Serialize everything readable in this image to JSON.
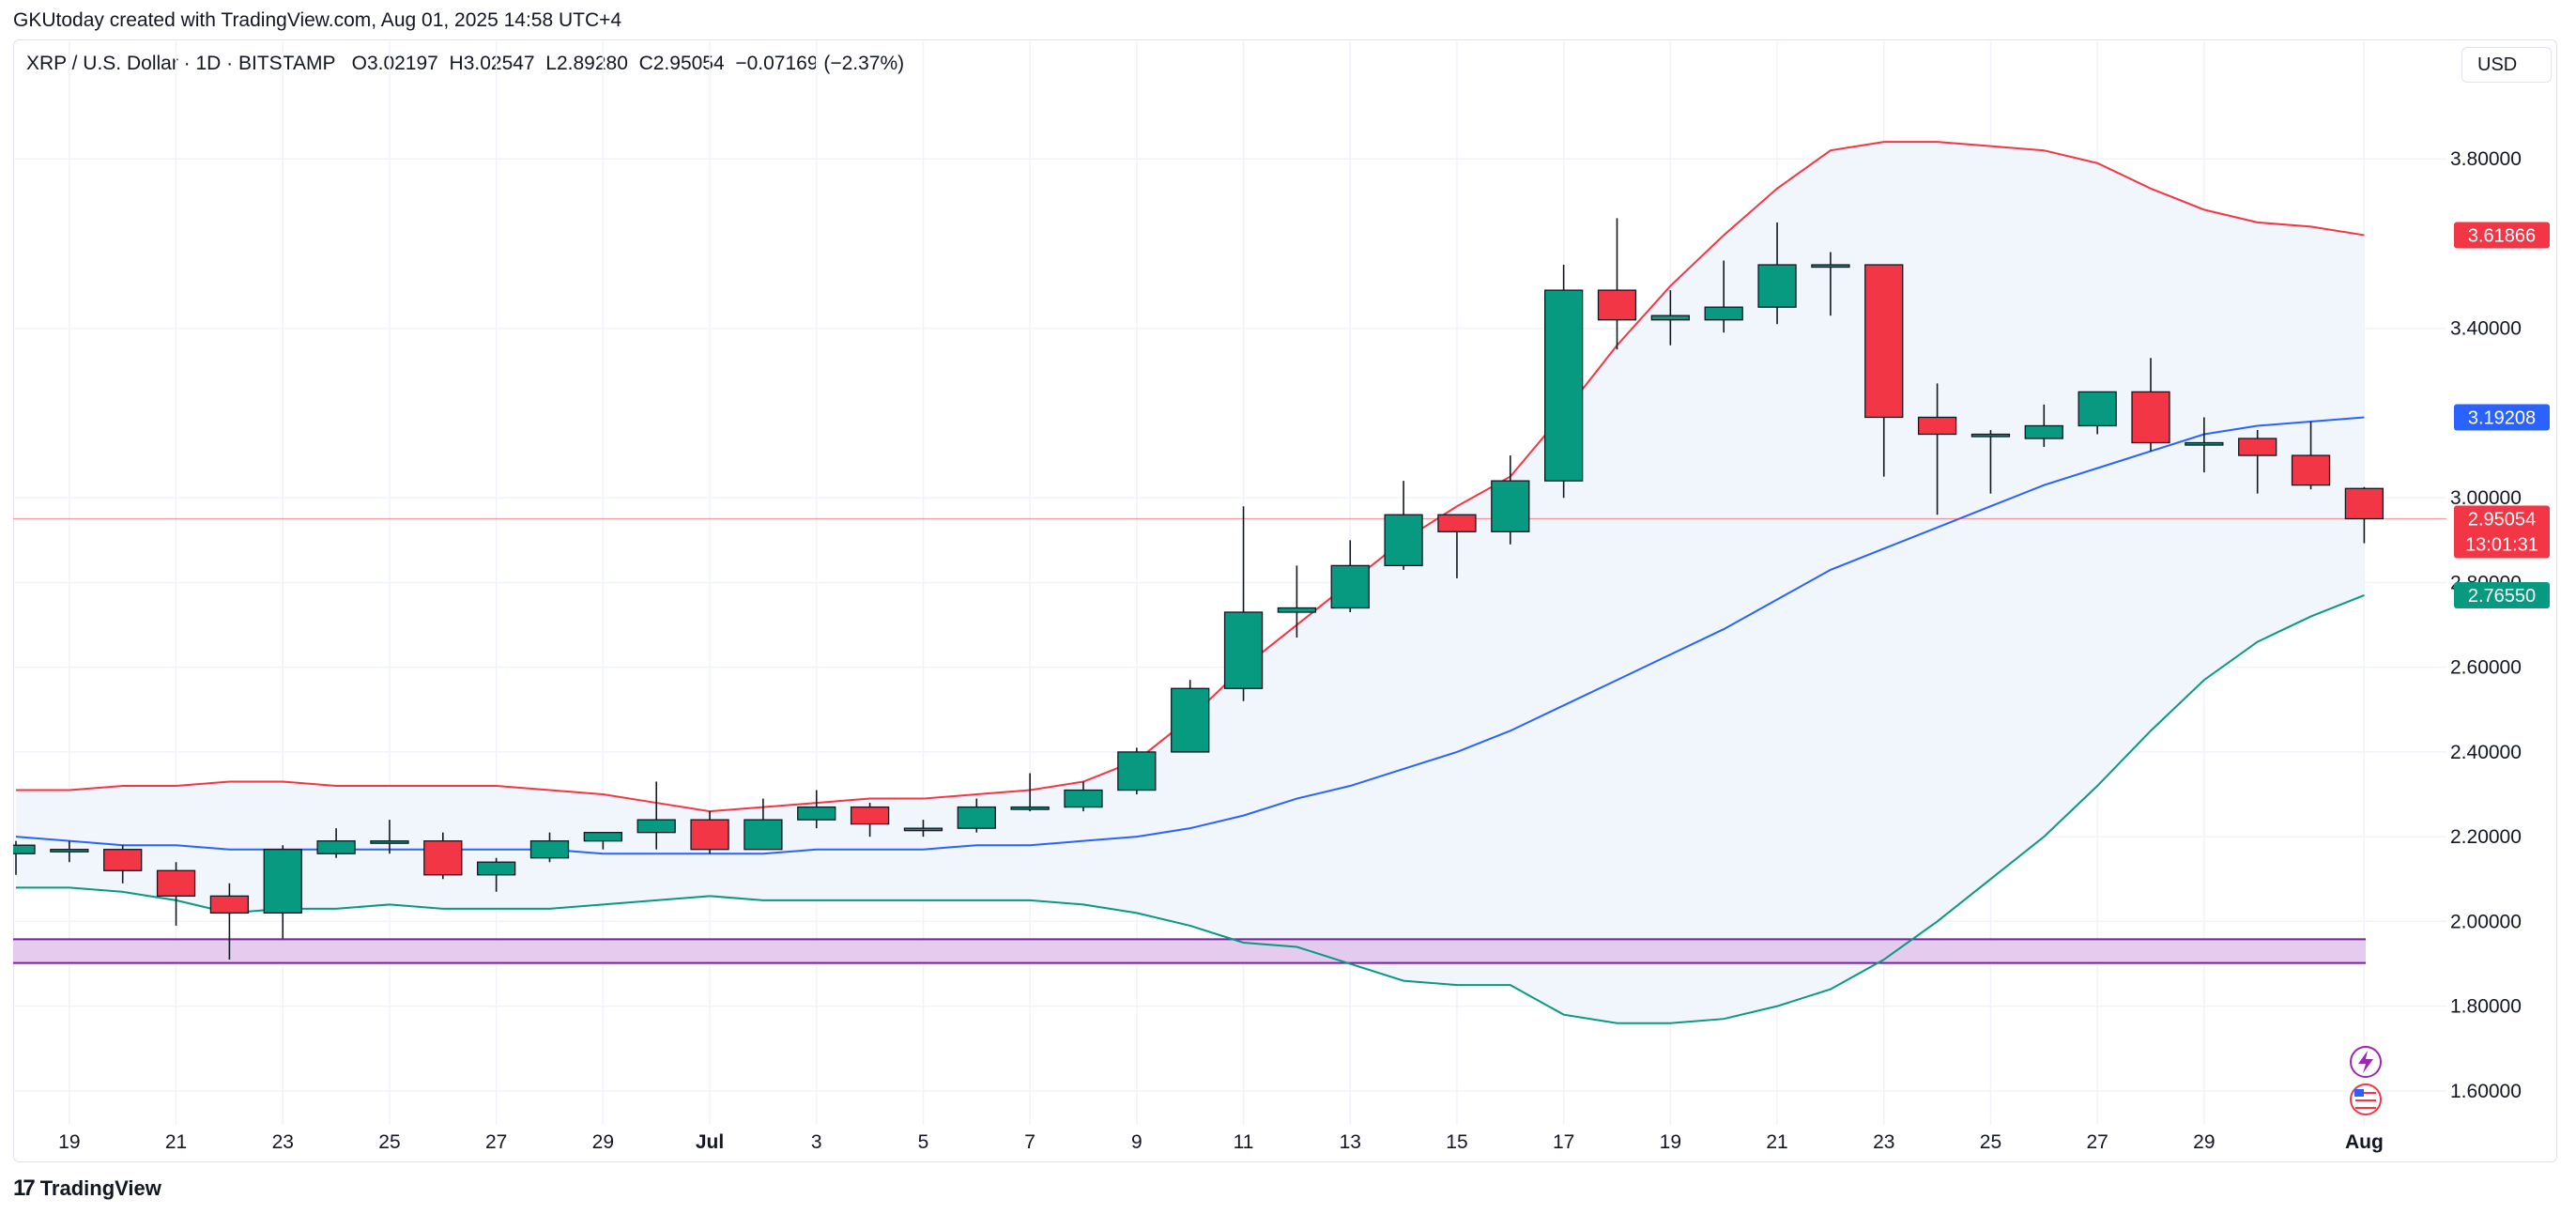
{
  "header": {
    "attribution": "GKUtoday created with TradingView.com, Aug 01, 2025 14:58 UTC+4"
  },
  "legend": {
    "symbol": "XRP / U.S. Dollar · 1D · BITSTAMP",
    "open_label": "O",
    "open": "3.02197",
    "high_label": "H",
    "high": "3.02547",
    "low_label": "L",
    "low": "2.89280",
    "close_label": "C",
    "close": "2.95054",
    "change": "−0.07169 (−2.37%)"
  },
  "currency": "USD",
  "footer": {
    "brand": "TradingView"
  },
  "colors": {
    "up": "#089981",
    "down": "#f23645",
    "upper_band": "#f23645",
    "middle_band": "#2962ff",
    "lower_band": "#089981",
    "band_fill": "#f0f6fc",
    "zone_fill": "#e1c3ec",
    "zone_border": "#7b1fa2",
    "price_line": "#f23645"
  },
  "chart_data": {
    "type": "candlestick",
    "title": "XRP / U.S. Dollar · 1D · BITSTAMP",
    "indicator": "Bollinger Bands",
    "ylim": [
      1.52,
      3.98
    ],
    "y_ticks": [
      "3.80000",
      "3.40000",
      "3.00000",
      "2.80000",
      "2.60000",
      "2.40000",
      "2.20000",
      "2.00000",
      "1.80000",
      "1.60000"
    ],
    "y_tick_values": [
      3.8,
      3.4,
      3.0,
      2.8,
      2.6,
      2.4,
      2.2,
      2.0,
      1.8,
      1.6
    ],
    "x_ticks": [
      {
        "label": "19",
        "i": 1
      },
      {
        "label": "21",
        "i": 3
      },
      {
        "label": "23",
        "i": 5
      },
      {
        "label": "25",
        "i": 7
      },
      {
        "label": "27",
        "i": 9
      },
      {
        "label": "29",
        "i": 11
      },
      {
        "label": "Jul",
        "i": 13,
        "bold": true
      },
      {
        "label": "3",
        "i": 15
      },
      {
        "label": "5",
        "i": 17
      },
      {
        "label": "7",
        "i": 19
      },
      {
        "label": "9",
        "i": 21
      },
      {
        "label": "11",
        "i": 23
      },
      {
        "label": "13",
        "i": 25
      },
      {
        "label": "15",
        "i": 27
      },
      {
        "label": "17",
        "i": 29
      },
      {
        "label": "19",
        "i": 31
      },
      {
        "label": "21",
        "i": 33
      },
      {
        "label": "23",
        "i": 35
      },
      {
        "label": "25",
        "i": 37
      },
      {
        "label": "27",
        "i": 39
      },
      {
        "label": "29",
        "i": 41
      },
      {
        "label": "Aug",
        "i": 44,
        "bold": true
      }
    ],
    "candles": [
      {
        "o": 2.16,
        "h": 2.19,
        "l": 2.11,
        "c": 2.18
      },
      {
        "o": 2.17,
        "h": 2.19,
        "l": 2.14,
        "c": 2.17
      },
      {
        "o": 2.17,
        "h": 2.18,
        "l": 2.09,
        "c": 2.12
      },
      {
        "o": 2.12,
        "h": 2.14,
        "l": 1.99,
        "c": 2.06
      },
      {
        "o": 2.06,
        "h": 2.09,
        "l": 1.91,
        "c": 2.02
      },
      {
        "o": 2.02,
        "h": 2.18,
        "l": 1.96,
        "c": 2.17
      },
      {
        "o": 2.16,
        "h": 2.22,
        "l": 2.15,
        "c": 2.19
      },
      {
        "o": 2.19,
        "h": 2.24,
        "l": 2.16,
        "c": 2.19
      },
      {
        "o": 2.19,
        "h": 2.21,
        "l": 2.1,
        "c": 2.11
      },
      {
        "o": 2.11,
        "h": 2.15,
        "l": 2.07,
        "c": 2.14
      },
      {
        "o": 2.15,
        "h": 2.21,
        "l": 2.14,
        "c": 2.19
      },
      {
        "o": 2.19,
        "h": 2.21,
        "l": 2.17,
        "c": 2.21
      },
      {
        "o": 2.21,
        "h": 2.33,
        "l": 2.17,
        "c": 2.24
      },
      {
        "o": 2.24,
        "h": 2.26,
        "l": 2.16,
        "c": 2.17
      },
      {
        "o": 2.17,
        "h": 2.29,
        "l": 2.17,
        "c": 2.24
      },
      {
        "o": 2.24,
        "h": 2.31,
        "l": 2.22,
        "c": 2.27
      },
      {
        "o": 2.27,
        "h": 2.28,
        "l": 2.2,
        "c": 2.23
      },
      {
        "o": 2.22,
        "h": 2.24,
        "l": 2.2,
        "c": 2.22
      },
      {
        "o": 2.22,
        "h": 2.29,
        "l": 2.21,
        "c": 2.27
      },
      {
        "o": 2.27,
        "h": 2.35,
        "l": 2.26,
        "c": 2.27
      },
      {
        "o": 2.27,
        "h": 2.33,
        "l": 2.26,
        "c": 2.31
      },
      {
        "o": 2.31,
        "h": 2.41,
        "l": 2.3,
        "c": 2.4
      },
      {
        "o": 2.4,
        "h": 2.57,
        "l": 2.4,
        "c": 2.55
      },
      {
        "o": 2.55,
        "h": 2.98,
        "l": 2.52,
        "c": 2.73
      },
      {
        "o": 2.73,
        "h": 2.84,
        "l": 2.67,
        "c": 2.74
      },
      {
        "o": 2.74,
        "h": 2.9,
        "l": 2.73,
        "c": 2.84
      },
      {
        "o": 2.84,
        "h": 3.04,
        "l": 2.83,
        "c": 2.96
      },
      {
        "o": 2.96,
        "h": 2.96,
        "l": 2.81,
        "c": 2.92
      },
      {
        "o": 2.92,
        "h": 3.1,
        "l": 2.89,
        "c": 3.04
      },
      {
        "o": 3.04,
        "h": 3.55,
        "l": 3.0,
        "c": 3.49
      },
      {
        "o": 3.49,
        "h": 3.66,
        "l": 3.35,
        "c": 3.42
      },
      {
        "o": 3.42,
        "h": 3.49,
        "l": 3.36,
        "c": 3.43
      },
      {
        "o": 3.42,
        "h": 3.56,
        "l": 3.39,
        "c": 3.45
      },
      {
        "o": 3.45,
        "h": 3.65,
        "l": 3.41,
        "c": 3.55
      },
      {
        "o": 3.55,
        "h": 3.58,
        "l": 3.43,
        "c": 3.55
      },
      {
        "o": 3.55,
        "h": 3.55,
        "l": 3.05,
        "c": 3.19
      },
      {
        "o": 3.19,
        "h": 3.27,
        "l": 2.96,
        "c": 3.15
      },
      {
        "o": 3.15,
        "h": 3.16,
        "l": 3.01,
        "c": 3.15
      },
      {
        "o": 3.14,
        "h": 3.22,
        "l": 3.12,
        "c": 3.17
      },
      {
        "o": 3.17,
        "h": 3.25,
        "l": 3.15,
        "c": 3.25
      },
      {
        "o": 3.25,
        "h": 3.33,
        "l": 3.11,
        "c": 3.13
      },
      {
        "o": 3.13,
        "h": 3.19,
        "l": 3.06,
        "c": 3.13
      },
      {
        "o": 3.14,
        "h": 3.16,
        "l": 3.01,
        "c": 3.1
      },
      {
        "o": 3.1,
        "h": 3.18,
        "l": 3.02,
        "c": 3.03
      },
      {
        "o": 3.02197,
        "h": 3.02547,
        "l": 2.8928,
        "c": 2.95054
      }
    ],
    "bb_upper": [
      2.31,
      2.31,
      2.32,
      2.32,
      2.33,
      2.33,
      2.32,
      2.32,
      2.32,
      2.32,
      2.31,
      2.3,
      2.28,
      2.26,
      2.27,
      2.28,
      2.29,
      2.29,
      2.3,
      2.31,
      2.33,
      2.38,
      2.48,
      2.6,
      2.7,
      2.8,
      2.9,
      2.98,
      3.05,
      3.2,
      3.36,
      3.5,
      3.62,
      3.73,
      3.82,
      3.84,
      3.84,
      3.83,
      3.82,
      3.79,
      3.73,
      3.68,
      3.65,
      3.64,
      3.62
    ],
    "bb_middle": [
      2.2,
      2.19,
      2.18,
      2.18,
      2.17,
      2.17,
      2.17,
      2.17,
      2.17,
      2.17,
      2.17,
      2.16,
      2.16,
      2.16,
      2.16,
      2.17,
      2.17,
      2.17,
      2.18,
      2.18,
      2.19,
      2.2,
      2.22,
      2.25,
      2.29,
      2.32,
      2.36,
      2.4,
      2.45,
      2.51,
      2.57,
      2.63,
      2.69,
      2.76,
      2.83,
      2.88,
      2.93,
      2.98,
      3.03,
      3.07,
      3.11,
      3.15,
      3.17,
      3.18,
      3.19
    ],
    "bb_lower": [
      2.08,
      2.08,
      2.07,
      2.05,
      2.02,
      2.03,
      2.03,
      2.04,
      2.03,
      2.03,
      2.03,
      2.04,
      2.05,
      2.06,
      2.05,
      2.05,
      2.05,
      2.05,
      2.05,
      2.05,
      2.04,
      2.02,
      1.99,
      1.95,
      1.94,
      1.9,
      1.86,
      1.85,
      1.85,
      1.78,
      1.76,
      1.76,
      1.77,
      1.8,
      1.84,
      1.91,
      2.0,
      2.1,
      2.2,
      2.32,
      2.45,
      2.57,
      2.66,
      2.72,
      2.77
    ],
    "support_zone": [
      1.902,
      1.958
    ],
    "last_price": 2.95054,
    "price_labels": {
      "upper": "3.61866",
      "middle": "3.19208",
      "close": "2.95054",
      "countdown": "13:01:31",
      "lower": "2.76550"
    }
  }
}
